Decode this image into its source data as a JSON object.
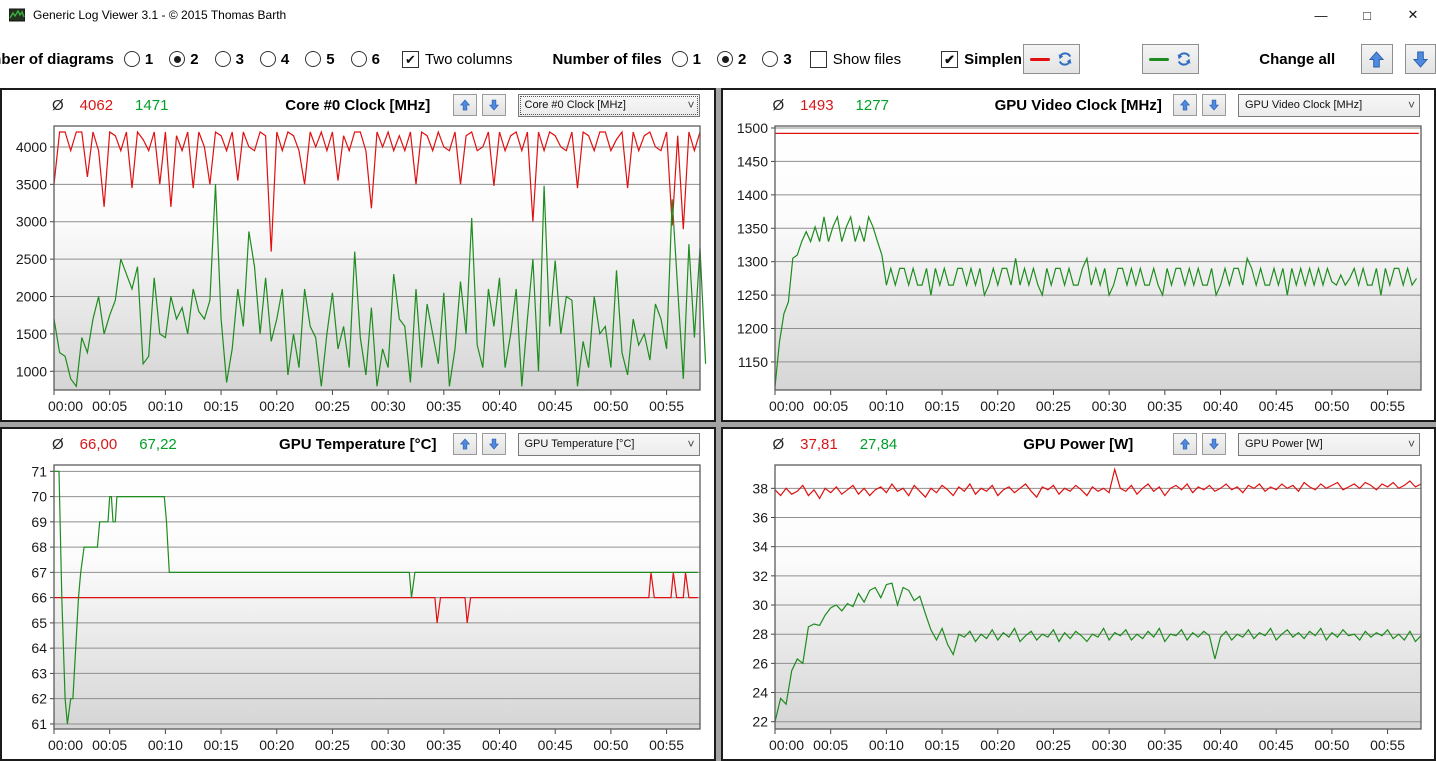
{
  "window": {
    "title": "Generic Log Viewer 3.1 - © 2015 Thomas Barth",
    "minimize": "—",
    "maximize": "□",
    "close": "✕"
  },
  "colors": {
    "red_line": "#e01010",
    "green_line": "#1e8c1e",
    "red_text": "#d81717",
    "green_text": "#00a029",
    "blue_arrow": "#3c7ad1"
  },
  "toolbar": {
    "diagrams_label": "Number of diagrams",
    "diagram_options": [
      "1",
      "2",
      "3",
      "4",
      "5",
      "6"
    ],
    "diagrams_selected": "2",
    "two_columns_label": "Two columns",
    "two_columns_checked": true,
    "files_label": "Number of files",
    "file_options": [
      "1",
      "2",
      "3"
    ],
    "files_selected": "2",
    "show_files_label": "Show files",
    "show_files_checked": false,
    "simple_label": "Simple",
    "simple_partial": "m",
    "simple_checked": true,
    "change_all_label": "Change all"
  },
  "chart_data": [
    {
      "type": "line",
      "title": "Core #0 Clock [MHz]",
      "avg_symbol": "Ø",
      "avg_red": "4062",
      "avg_green": "1471",
      "dropdown_value": "Core #0 Clock [MHz]",
      "dropdown_focused": true,
      "ylim": [
        750,
        4280
      ],
      "yticks": [
        1000,
        1500,
        2000,
        2500,
        3000,
        3500,
        4000
      ],
      "xlim": [
        0,
        58
      ],
      "xtick_labels": [
        "00:00",
        "00:05",
        "00:10",
        "00:15",
        "00:20",
        "00:25",
        "00:30",
        "00:35",
        "00:40",
        "00:45",
        "00:50",
        "00:55"
      ],
      "xtick_minutes": [
        0,
        5,
        10,
        15,
        20,
        25,
        30,
        35,
        40,
        45,
        50,
        55
      ],
      "series": [
        {
          "name": "file1-red",
          "color": "#e01010",
          "t0": 0,
          "dt": 0.5,
          "values": [
            3500,
            4200,
            4200,
            3950,
            4200,
            4200,
            3600,
            4200,
            3950,
            3200,
            4200,
            4150,
            3950,
            4200,
            3450,
            4200,
            4100,
            3950,
            4200,
            3500,
            4200,
            3200,
            4150,
            3950,
            4200,
            3450,
            4200,
            4000,
            3500,
            4200,
            4150,
            3950,
            4200,
            3550,
            4200,
            4000,
            3950,
            4200,
            4150,
            2600,
            4200,
            3950,
            4200,
            4150,
            3950,
            3500,
            4200,
            4000,
            4200,
            3950,
            4200,
            3550,
            4150,
            3950,
            4200,
            4200,
            3950,
            3180,
            4200,
            4000,
            4200,
            3950,
            4150,
            3950,
            4200,
            3500,
            4200,
            4150,
            3950,
            4200,
            4000,
            3950,
            4200,
            3500,
            4150,
            4200,
            3950,
            4000,
            4200,
            3480,
            4200,
            3950,
            4150,
            4200,
            3950,
            4200,
            3000,
            4200,
            3950,
            4200,
            4150,
            4000,
            3950,
            4200,
            3450,
            4200,
            4150,
            3950,
            4200,
            4200,
            3950,
            4100,
            4200,
            3450,
            4200,
            3950,
            4150,
            4200,
            4000,
            3950,
            4200,
            2950,
            4150,
            2900,
            4200,
            3950,
            4200
          ]
        },
        {
          "name": "file2-green",
          "color": "#1e8c1e",
          "t0": 0,
          "dt": 0.5,
          "values": [
            1700,
            1250,
            1200,
            900,
            800,
            1450,
            1250,
            1700,
            2000,
            1500,
            1750,
            1950,
            2500,
            2300,
            2100,
            2400,
            1100,
            1200,
            2250,
            1500,
            1450,
            2000,
            1700,
            1850,
            1500,
            2100,
            1800,
            1700,
            1950,
            3500,
            1700,
            850,
            1300,
            2100,
            1600,
            2870,
            2400,
            1500,
            2250,
            1400,
            1700,
            2100,
            950,
            1500,
            1050,
            2100,
            1600,
            1450,
            800,
            1500,
            2050,
            1300,
            1600,
            1050,
            2600,
            1450,
            950,
            1850,
            800,
            1300,
            1050,
            2300,
            1700,
            1600,
            850,
            2100,
            1050,
            1900,
            1500,
            1100,
            2050,
            800,
            1300,
            2200,
            1500,
            3050,
            1350,
            1050,
            2100,
            1600,
            2250,
            1050,
            1500,
            2100,
            800,
            1700,
            2500,
            1000,
            3480,
            1600,
            2480,
            1500,
            2000,
            1950,
            800,
            1400,
            1050,
            2000,
            1500,
            1600,
            1050,
            2350,
            1250,
            950,
            1700,
            1350,
            1500,
            1150,
            1900,
            1700,
            1300,
            3300,
            2100,
            900,
            2700,
            1450,
            2650,
            1100
          ]
        }
      ]
    },
    {
      "type": "line",
      "title": "GPU Video Clock [MHz]",
      "avg_symbol": "Ø",
      "avg_red": "1493",
      "avg_green": "1277",
      "dropdown_value": "GPU Video Clock [MHz]",
      "dropdown_focused": false,
      "ylim": [
        1108,
        1503
      ],
      "yticks": [
        1150,
        1200,
        1250,
        1300,
        1350,
        1400,
        1450,
        1500
      ],
      "xlim": [
        0,
        58
      ],
      "xtick_labels": [
        "00:00",
        "00:05",
        "00:10",
        "00:15",
        "00:20",
        "00:25",
        "00:30",
        "00:35",
        "00:40",
        "00:45",
        "00:50",
        "00:55"
      ],
      "xtick_minutes": [
        0,
        5,
        10,
        15,
        20,
        25,
        30,
        35,
        40,
        45,
        50,
        55
      ],
      "series": [
        {
          "name": "file1-red",
          "color": "#e01010",
          "points": [
            [
              0,
              1492
            ],
            [
              57.8,
              1492
            ]
          ]
        },
        {
          "name": "file2-green",
          "color": "#1e8c1e",
          "t0": 0,
          "dt": 0.4,
          "values": [
            1113,
            1180,
            1222,
            1240,
            1305,
            1310,
            1330,
            1345,
            1330,
            1352,
            1330,
            1367,
            1330,
            1352,
            1367,
            1330,
            1352,
            1367,
            1330,
            1352,
            1330,
            1367,
            1352,
            1330,
            1310,
            1265,
            1290,
            1265,
            1290,
            1290,
            1265,
            1290,
            1265,
            1265,
            1290,
            1250,
            1290,
            1265,
            1290,
            1265,
            1265,
            1290,
            1290,
            1265,
            1290,
            1265,
            1290,
            1250,
            1265,
            1290,
            1265,
            1290,
            1290,
            1265,
            1305,
            1265,
            1290,
            1265,
            1290,
            1265,
            1250,
            1290,
            1265,
            1290,
            1290,
            1265,
            1290,
            1265,
            1265,
            1290,
            1305,
            1265,
            1290,
            1265,
            1290,
            1250,
            1265,
            1290,
            1290,
            1265,
            1290,
            1265,
            1290,
            1265,
            1265,
            1290,
            1265,
            1250,
            1290,
            1265,
            1290,
            1290,
            1265,
            1290,
            1265,
            1290,
            1265,
            1265,
            1290,
            1250,
            1265,
            1290,
            1265,
            1290,
            1290,
            1265,
            1305,
            1290,
            1265,
            1290,
            1265,
            1265,
            1290,
            1265,
            1290,
            1250,
            1290,
            1265,
            1290,
            1265,
            1290,
            1265,
            1290,
            1265,
            1290,
            1270,
            1265,
            1280,
            1265,
            1275,
            1290,
            1265,
            1290,
            1265,
            1265,
            1290,
            1250,
            1290,
            1265,
            1290,
            1290,
            1265,
            1290,
            1265,
            1275
          ]
        }
      ]
    },
    {
      "type": "line",
      "title": "GPU Temperature [°C]",
      "avg_symbol": "Ø",
      "avg_red": "66,00",
      "avg_green": "67,22",
      "dropdown_value": "GPU Temperature [°C]",
      "dropdown_focused": false,
      "ylim": [
        60.8,
        71.25
      ],
      "yticks": [
        61,
        62,
        63,
        64,
        65,
        66,
        67,
        68,
        69,
        70,
        71
      ],
      "xlim": [
        0,
        58
      ],
      "xtick_labels": [
        "00:00",
        "00:05",
        "00:10",
        "00:15",
        "00:20",
        "00:25",
        "00:30",
        "00:35",
        "00:40",
        "00:45",
        "00:50",
        "00:55"
      ],
      "xtick_minutes": [
        0,
        5,
        10,
        15,
        20,
        25,
        30,
        35,
        40,
        45,
        50,
        55
      ],
      "series": [
        {
          "name": "file1-red",
          "color": "#e01010",
          "points": [
            [
              0,
              66
            ],
            [
              34.2,
              66
            ],
            [
              34.4,
              65
            ],
            [
              34.7,
              66
            ],
            [
              36.9,
              66
            ],
            [
              37.1,
              65
            ],
            [
              37.4,
              66
            ],
            [
              53.4,
              66
            ],
            [
              53.6,
              67
            ],
            [
              53.9,
              66
            ],
            [
              55.4,
              66
            ],
            [
              55.6,
              67
            ],
            [
              55.9,
              66
            ],
            [
              56.5,
              66
            ],
            [
              56.7,
              67
            ],
            [
              57.0,
              66
            ],
            [
              57.8,
              66
            ]
          ]
        },
        {
          "name": "file2-green",
          "color": "#1e8c1e",
          "points": [
            [
              0,
              71
            ],
            [
              0.45,
              71
            ],
            [
              0.7,
              66
            ],
            [
              1.0,
              62
            ],
            [
              1.2,
              61
            ],
            [
              1.5,
              62
            ],
            [
              1.7,
              62
            ],
            [
              2.2,
              66
            ],
            [
              2.4,
              67
            ],
            [
              2.7,
              68
            ],
            [
              3.9,
              68
            ],
            [
              4.1,
              69
            ],
            [
              4.85,
              69
            ],
            [
              5.0,
              70
            ],
            [
              5.15,
              70
            ],
            [
              5.3,
              69
            ],
            [
              5.5,
              69
            ],
            [
              5.65,
              70
            ],
            [
              9.9,
              70
            ],
            [
              10.1,
              69
            ],
            [
              10.35,
              67
            ],
            [
              31.9,
              67
            ],
            [
              32.1,
              66
            ],
            [
              32.4,
              67
            ],
            [
              57.8,
              67
            ]
          ]
        }
      ]
    },
    {
      "type": "line",
      "title": "GPU Power [W]",
      "avg_symbol": "Ø",
      "avg_red": "37,81",
      "avg_green": "27,84",
      "dropdown_value": "GPU Power [W]",
      "dropdown_focused": false,
      "ylim": [
        21.5,
        39.6
      ],
      "yticks": [
        22,
        24,
        26,
        28,
        30,
        32,
        34,
        36,
        38
      ],
      "xlim": [
        0,
        58
      ],
      "xtick_labels": [
        "00:00",
        "00:05",
        "00:10",
        "00:15",
        "00:20",
        "00:25",
        "00:30",
        "00:35",
        "00:40",
        "00:45",
        "00:50",
        "00:55"
      ],
      "xtick_minutes": [
        0,
        5,
        10,
        15,
        20,
        25,
        30,
        35,
        40,
        45,
        50,
        55
      ],
      "series": [
        {
          "name": "file1-red",
          "color": "#e01010",
          "t0": 0,
          "dt": 0.5,
          "values": [
            37.9,
            37.5,
            38.0,
            37.6,
            37.8,
            38.2,
            37.5,
            37.9,
            37.3,
            38.0,
            37.7,
            38.1,
            37.6,
            37.9,
            38.2,
            37.6,
            38.0,
            37.5,
            37.9,
            38.1,
            37.7,
            38.3,
            37.8,
            38.0,
            37.5,
            38.2,
            37.8,
            37.4,
            38.0,
            37.7,
            38.2,
            37.9,
            37.5,
            38.1,
            37.8,
            38.3,
            37.6,
            38.0,
            37.8,
            38.2,
            37.5,
            37.9,
            38.1,
            37.7,
            38.0,
            38.3,
            37.8,
            37.4,
            38.1,
            37.9,
            38.2,
            37.6,
            38.0,
            37.8,
            38.2,
            37.9,
            37.5,
            38.1,
            37.8,
            38.0,
            37.7,
            39.3,
            38.0,
            37.8,
            38.2,
            37.6,
            38.0,
            38.3,
            37.8,
            38.1,
            37.5,
            38.0,
            38.2,
            37.9,
            38.3,
            37.7,
            38.1,
            37.9,
            38.2,
            37.8,
            38.0,
            38.3,
            37.9,
            38.1,
            37.7,
            38.2,
            38.0,
            38.3,
            37.8,
            38.1,
            37.9,
            38.3,
            38.0,
            38.2,
            37.8,
            38.4,
            38.1,
            37.9,
            38.3,
            38.0,
            38.2,
            38.4,
            37.9,
            38.1,
            38.3,
            38.0,
            38.4,
            38.2,
            37.9,
            38.3,
            38.1,
            38.4,
            38.0,
            38.2,
            38.5,
            38.1,
            38.3
          ]
        },
        {
          "name": "file2-green",
          "color": "#1e8c1e",
          "t0": 0,
          "dt": 0.5,
          "values": [
            22.0,
            23.6,
            23.2,
            25.5,
            26.3,
            26.0,
            28.5,
            28.7,
            28.6,
            29.3,
            29.8,
            30.0,
            29.6,
            30.1,
            29.9,
            30.8,
            30.2,
            31.0,
            31.2,
            30.5,
            31.4,
            31.5,
            30.0,
            31.2,
            31.0,
            30.3,
            30.6,
            29.4,
            28.3,
            27.6,
            28.4,
            27.3,
            26.6,
            28.0,
            27.8,
            28.2,
            27.5,
            28.0,
            27.7,
            28.3,
            27.6,
            28.1,
            27.8,
            28.4,
            27.5,
            27.9,
            28.2,
            27.6,
            28.0,
            27.8,
            28.3,
            27.5,
            28.1,
            27.7,
            28.2,
            27.9,
            27.5,
            28.0,
            27.8,
            28.4,
            27.6,
            28.1,
            27.9,
            28.3,
            27.6,
            28.0,
            27.7,
            28.2,
            27.8,
            28.4,
            27.5,
            28.0,
            27.9,
            28.3,
            27.6,
            28.1,
            27.8,
            28.2,
            27.9,
            26.3,
            27.8,
            28.2,
            27.6,
            28.0,
            27.8,
            28.3,
            27.7,
            28.1,
            27.9,
            28.4,
            27.6,
            28.0,
            28.3,
            27.8,
            28.1,
            27.7,
            28.2,
            27.9,
            28.4,
            27.6,
            28.1,
            27.8,
            28.3,
            27.9,
            28.0,
            27.6,
            28.2,
            27.8,
            28.1,
            27.9,
            28.3,
            27.7,
            28.0,
            27.6,
            28.2,
            27.5,
            27.9
          ]
        }
      ]
    }
  ]
}
